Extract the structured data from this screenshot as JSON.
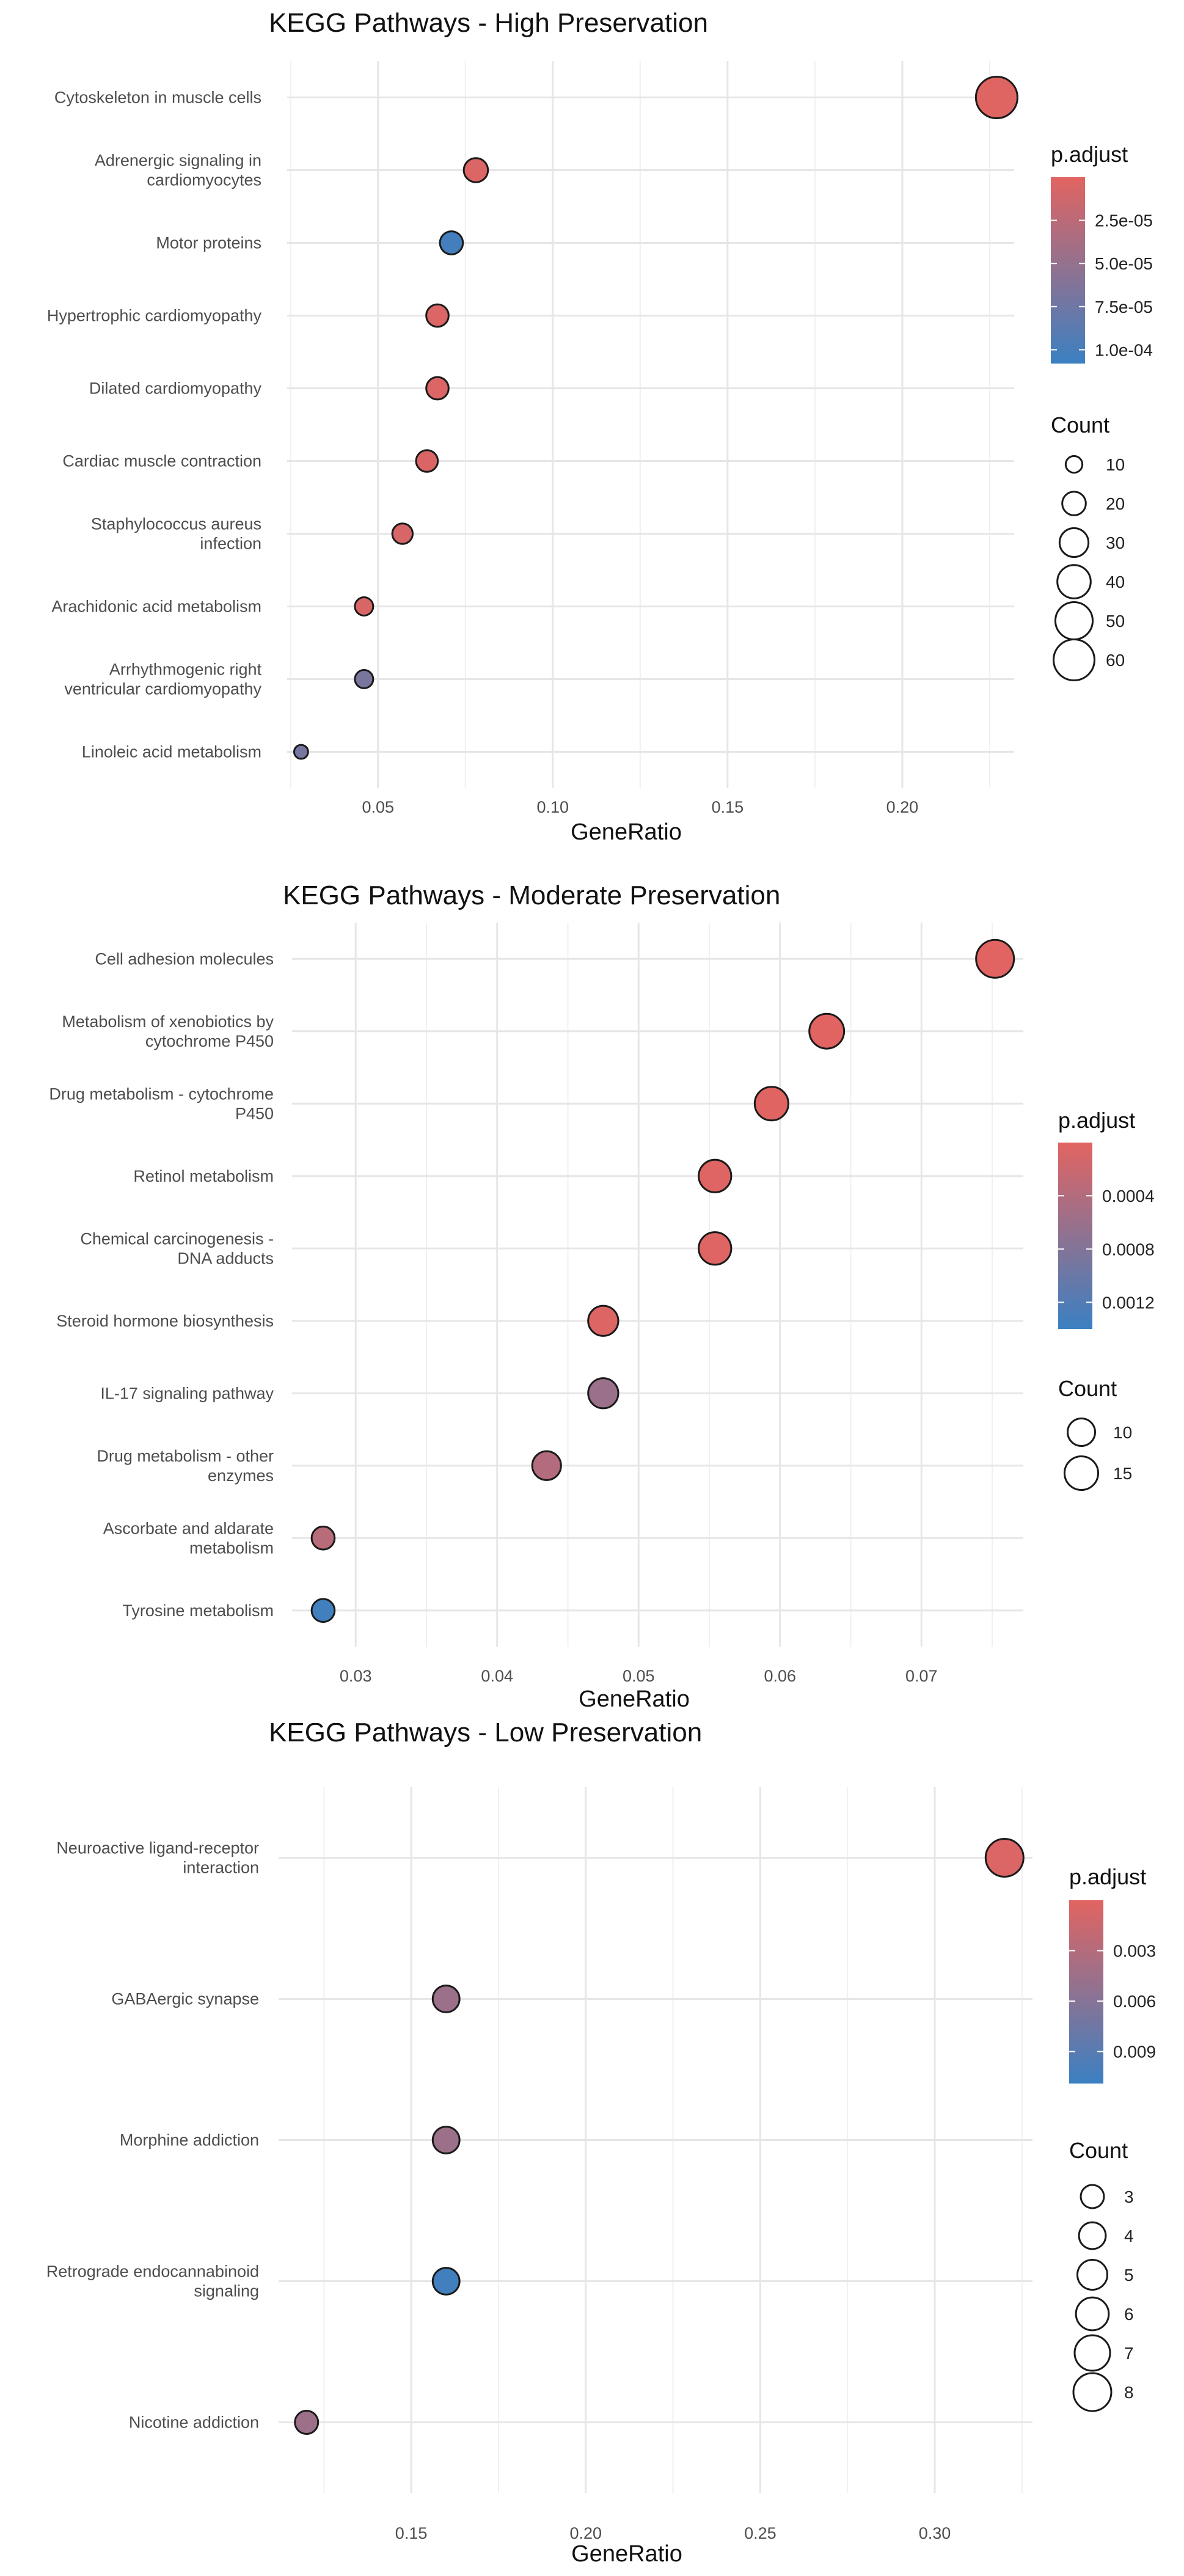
{
  "chart_data": [
    {
      "type": "scatter",
      "title": "KEGG Pathways - High Preservation",
      "xlabel": "GeneRatio",
      "ylabel": "",
      "xlim": [
        0.024,
        0.232
      ],
      "xticks": [
        "0.05",
        "0.10",
        "0.15",
        "0.20"
      ],
      "grid": true,
      "legend_position": "right",
      "color_scale": {
        "title": "p.adjust",
        "low_color": "#e26461",
        "high_color": "#3b80c2",
        "min": 0.0,
        "max": 0.000108,
        "ticks": [
          "2.5e-05",
          "5.0e-05",
          "7.5e-05",
          "1.0e-04"
        ],
        "tick_values": [
          2.5e-05,
          5e-05,
          7.5e-05,
          0.0001
        ]
      },
      "size_scale": {
        "title": "Count",
        "labels": [
          "10",
          "20",
          "30",
          "40",
          "50",
          "60"
        ],
        "values": [
          10,
          20,
          30,
          40,
          50,
          60
        ],
        "max": 62
      },
      "categories": [
        "Cytoskeleton in muscle cells",
        "Adrenergic signaling in cardiomyocytes",
        "Motor proteins",
        "Hypertrophic cardiomyopathy",
        "Dilated cardiomyopathy",
        "Cardiac muscle contraction",
        "Staphylococcus aureus infection",
        "Arachidonic acid metabolism",
        "Arrhythmogenic right ventricular cardiomyopathy",
        "Linoleic acid metabolism"
      ],
      "category_lines": [
        [
          "Cytoskeleton in muscle cells"
        ],
        [
          "Adrenergic signaling in",
          "cardiomyocytes"
        ],
        [
          "Motor proteins"
        ],
        [
          "Hypertrophic cardiomyopathy"
        ],
        [
          "Dilated cardiomyopathy"
        ],
        [
          "Cardiac muscle contraction"
        ],
        [
          "Staphylococcus aureus",
          "infection"
        ],
        [
          "Arachidonic acid metabolism"
        ],
        [
          "Arrhythmogenic right",
          "ventricular cardiomyopathy"
        ],
        [
          "Linoleic acid metabolism"
        ]
      ],
      "x": [
        0.227,
        0.078,
        0.071,
        0.067,
        0.067,
        0.064,
        0.057,
        0.046,
        0.046,
        0.028
      ],
      "count": [
        62,
        21,
        19,
        18,
        18,
        17,
        15,
        12,
        12,
        7
      ],
      "p_adjust": [
        2e-06,
        4e-06,
        0.000102,
        4e-06,
        4e-06,
        5e-06,
        8e-06,
        6e-06,
        6.8e-05,
        7e-05
      ]
    },
    {
      "type": "scatter",
      "title": "KEGG Pathways - Moderate Preservation",
      "xlabel": "GeneRatio",
      "ylabel": "",
      "xlim": [
        0.0255,
        0.0772
      ],
      "xticks": [
        "0.03",
        "0.04",
        "0.05",
        "0.06",
        "0.07"
      ],
      "grid": true,
      "legend_position": "right",
      "color_scale": {
        "title": "p.adjust",
        "low_color": "#e26461",
        "high_color": "#3b80c2",
        "min": 0.0,
        "max": 0.0014,
        "ticks": [
          "0.0004",
          "0.0008",
          "0.0012"
        ],
        "tick_values": [
          0.0004,
          0.0008,
          0.0012
        ]
      },
      "size_scale": {
        "title": "Count",
        "labels": [
          "10",
          "15"
        ],
        "values": [
          10,
          15
        ],
        "max": 19
      },
      "categories": [
        "Cell adhesion molecules",
        "Metabolism of xenobiotics by cytochrome P450",
        "Drug metabolism - cytochrome P450",
        "Retinol metabolism",
        "Chemical carcinogenesis - DNA adducts",
        "Steroid hormone biosynthesis",
        "IL-17 signaling pathway",
        "Drug metabolism - other enzymes",
        "Ascorbate and aldarate metabolism",
        "Tyrosine metabolism"
      ],
      "category_lines": [
        [
          "Cell adhesion molecules"
        ],
        [
          "Metabolism of xenobiotics by",
          "cytochrome P450"
        ],
        [
          "Drug metabolism - cytochrome",
          "P450"
        ],
        [
          "Retinol metabolism"
        ],
        [
          "Chemical carcinogenesis -",
          "DNA adducts"
        ],
        [
          "Steroid hormone biosynthesis"
        ],
        [
          "IL-17 signaling pathway"
        ],
        [
          "Drug metabolism - other",
          "enzymes"
        ],
        [
          "Ascorbate and aldarate",
          "metabolism"
        ],
        [
          "Tyrosine metabolism"
        ]
      ],
      "x": [
        0.0752,
        0.0633,
        0.0594,
        0.0554,
        0.0554,
        0.0475,
        0.0475,
        0.0435,
        0.0277,
        0.0277
      ],
      "count": [
        19,
        16,
        15,
        14,
        14,
        12,
        12,
        11,
        7,
        7
      ],
      "p_adjust": [
        1e-05,
        1e-05,
        2e-05,
        3e-05,
        3e-05,
        4e-05,
        0.0006,
        0.0004,
        0.00035,
        0.00135
      ]
    },
    {
      "type": "scatter",
      "title": "KEGG Pathways - Low Preservation",
      "xlabel": "GeneRatio",
      "ylabel": "",
      "xlim": [
        0.112,
        0.328
      ],
      "xticks": [
        "0.15",
        "0.20",
        "0.25",
        "0.30"
      ],
      "grid": true,
      "legend_position": "right",
      "color_scale": {
        "title": "p.adjust",
        "low_color": "#e26461",
        "high_color": "#3b80c2",
        "min": 0.0,
        "max": 0.0109,
        "ticks": [
          "0.003",
          "0.006",
          "0.009"
        ],
        "tick_values": [
          0.003,
          0.006,
          0.009
        ]
      },
      "size_scale": {
        "title": "Count",
        "labels": [
          "3",
          "4",
          "5",
          "6",
          "7",
          "8"
        ],
        "values": [
          3,
          4,
          5,
          6,
          7,
          8
        ],
        "max": 8
      },
      "categories": [
        "Neuroactive ligand-receptor interaction",
        "GABAergic synapse",
        "Morphine addiction",
        "Retrograde endocannabinoid signaling",
        "Nicotine addiction"
      ],
      "category_lines": [
        [
          "Neuroactive ligand-receptor",
          "interaction"
        ],
        [
          "GABAergic synapse"
        ],
        [
          "Morphine addiction"
        ],
        [
          "Retrograde endocannabinoid",
          "signaling"
        ],
        [
          "Nicotine addiction"
        ]
      ],
      "x": [
        0.32,
        0.16,
        0.16,
        0.16,
        0.12
      ],
      "count": [
        8,
        4,
        4,
        4,
        3
      ],
      "p_adjust": [
        0.0004,
        0.0045,
        0.0045,
        0.0105,
        0.0045
      ]
    }
  ]
}
